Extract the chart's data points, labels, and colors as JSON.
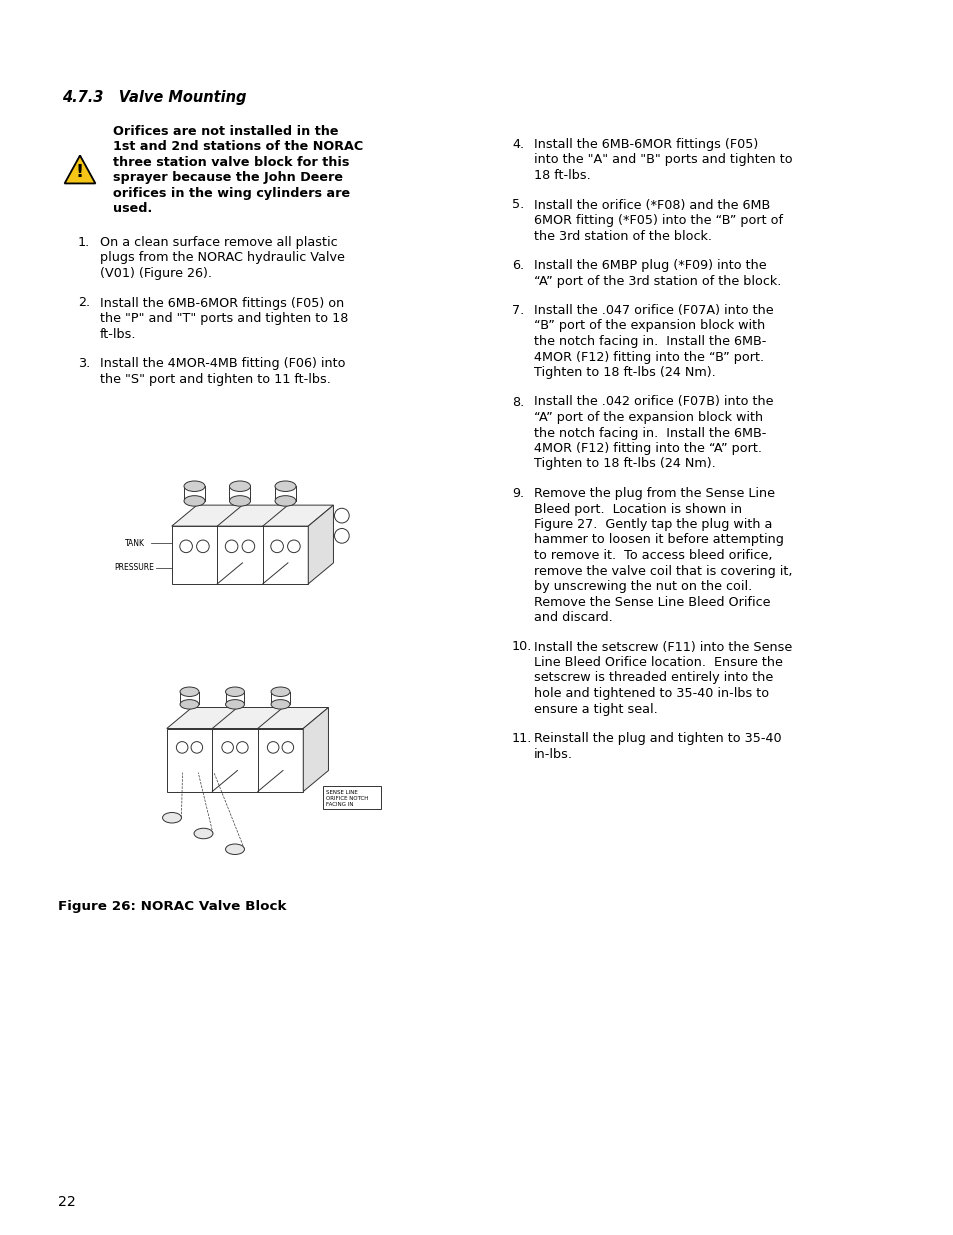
{
  "bg_color": "#ffffff",
  "section_title": "4.7.3   Valve Mounting",
  "warning_lines": [
    "Orifices are not installed in the",
    "1st and 2nd stations of the NORAC",
    "three station valve block for this",
    "sprayer because the John Deere",
    "orifices in the wing cylinders are",
    "used."
  ],
  "left_items": [
    {
      "num": "1.",
      "lines": [
        "On a clean surface remove all plastic",
        "plugs from the NORAC hydraulic Valve",
        "(V01) (Figure 26)."
      ]
    },
    {
      "num": "2.",
      "lines": [
        "Install the 6MB-6MOR fittings (F05) on",
        "the \"P\" and \"T\" ports and tighten to 18",
        "ft-lbs."
      ]
    },
    {
      "num": "3.",
      "lines": [
        "Install the 4MOR-4MB fitting (F06) into",
        "the \"S\" port and tighten to 11 ft-lbs."
      ]
    }
  ],
  "right_items": [
    {
      "num": "4.",
      "lines": [
        "Install the 6MB-6MOR fittings (F05)",
        "into the \"A\" and \"B\" ports and tighten to",
        "18 ft-lbs."
      ]
    },
    {
      "num": "5.",
      "lines": [
        "Install the orifice (*F08) and the 6MB",
        "6MOR fitting (*F05) into the “B” port of",
        "the 3rd station of the block."
      ]
    },
    {
      "num": "6.",
      "lines": [
        "Install the 6MBP plug (*F09) into the",
        "“A” port of the 3rd station of the block."
      ]
    },
    {
      "num": "7.",
      "lines": [
        "Install the .047 orifice (F07A) into the",
        "“B” port of the expansion block with",
        "the notch facing in.  Install the 6MB-",
        "4MOR (F12) fitting into the “B” port.",
        "Tighten to 18 ft-lbs (24 Nm)."
      ]
    },
    {
      "num": "8.",
      "lines": [
        "Install the .042 orifice (F07B) into the",
        "“A” port of the expansion block with",
        "the notch facing in.  Install the 6MB-",
        "4MOR (F12) fitting into the “A” port.",
        "Tighten to 18 ft-lbs (24 Nm)."
      ]
    },
    {
      "num": "9.",
      "lines": [
        "Remove the plug from the Sense Line",
        "Bleed port.  Location is shown in",
        "Figure 27.  Gently tap the plug with a",
        "hammer to loosen it before attempting",
        "to remove it.  To access bleed orifice,",
        "remove the valve coil that is covering it,",
        "by unscrewing the nut on the coil.",
        "Remove the Sense Line Bleed Orifice",
        "and discard."
      ]
    },
    {
      "num": "10.",
      "lines": [
        "Install the setscrew (F11) into the Sense",
        "Line Bleed Orifice location.  Ensure the",
        "setscrew is threaded entirely into the",
        "hole and tightened to 35-40 in-lbs to",
        "ensure a tight seal."
      ]
    },
    {
      "num": "11.",
      "lines": [
        "Reinstall the plug and tighten to 35-40",
        "in-lbs."
      ]
    }
  ],
  "figure_caption": "Figure 26: NORAC Valve Block",
  "page_number": "22"
}
